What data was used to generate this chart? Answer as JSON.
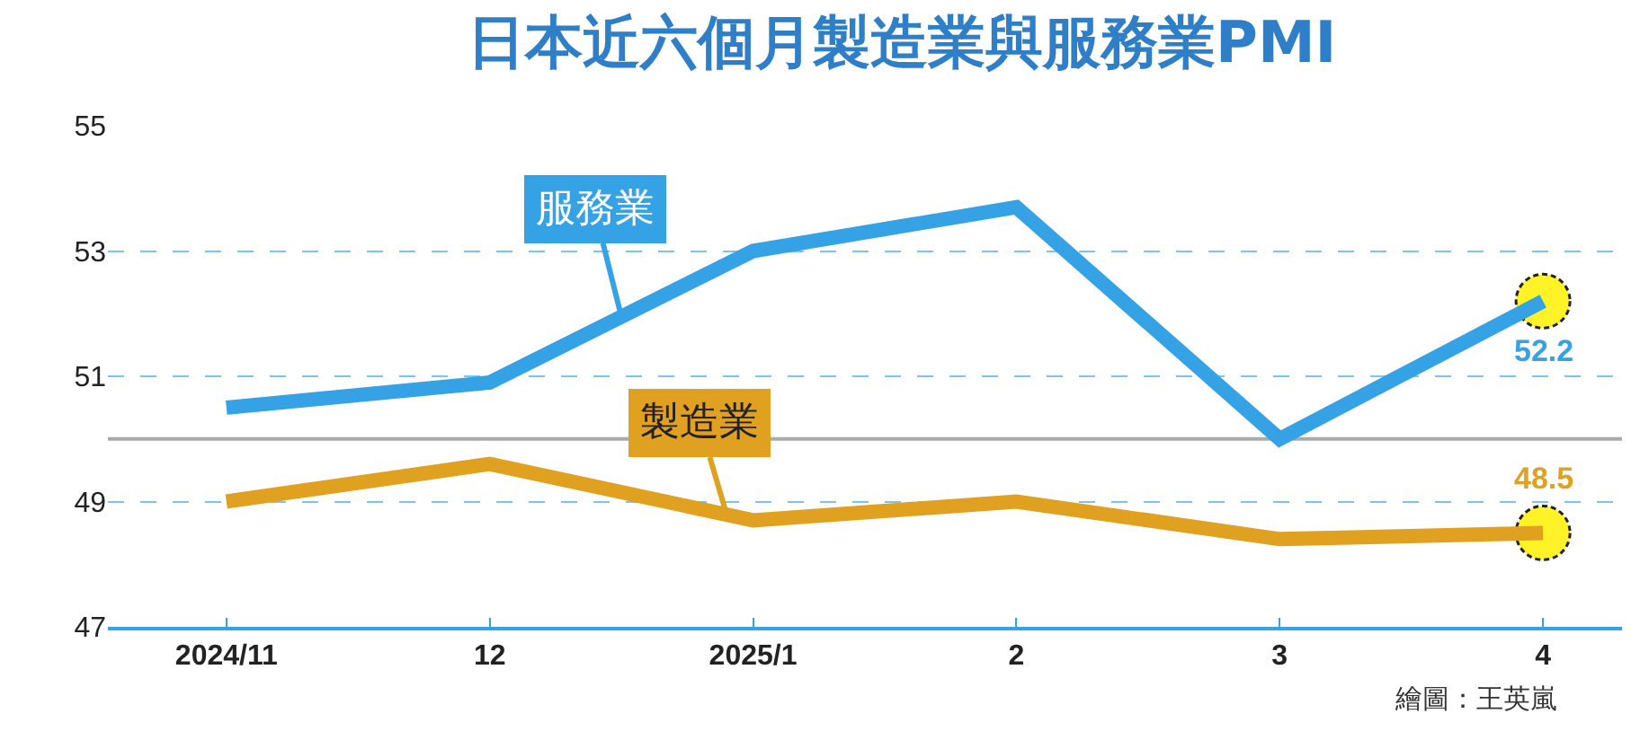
{
  "chart_data": {
    "type": "line",
    "title": "日本近六個月製造業與服務業PMI",
    "categories": [
      "2024/11",
      "12",
      "2025/1",
      "2",
      "3",
      "4"
    ],
    "series": [
      {
        "name": "服務業",
        "color": "#36a2e6",
        "values": [
          50.5,
          50.9,
          53.0,
          53.7,
          50.0,
          52.2
        ],
        "value_labels": [
          null,
          null,
          null,
          null,
          null,
          "52.2"
        ]
      },
      {
        "name": "製造業",
        "color": "#e0a020",
        "values": [
          49.0,
          49.6,
          48.7,
          49.0,
          48.4,
          48.5
        ],
        "value_labels": [
          null,
          null,
          null,
          null,
          null,
          "48.5"
        ]
      }
    ],
    "ylim": [
      47,
      55
    ],
    "yticks": [
      47,
      49,
      51,
      53,
      55
    ],
    "grid": "y",
    "legend": false,
    "marker": "none",
    "line_style": "solid",
    "ref_lines": [
      {
        "axis": "y",
        "value": 50,
        "color": "#aaaaaa"
      }
    ],
    "annotations": [
      "繪圖：王英嵐"
    ]
  }
}
